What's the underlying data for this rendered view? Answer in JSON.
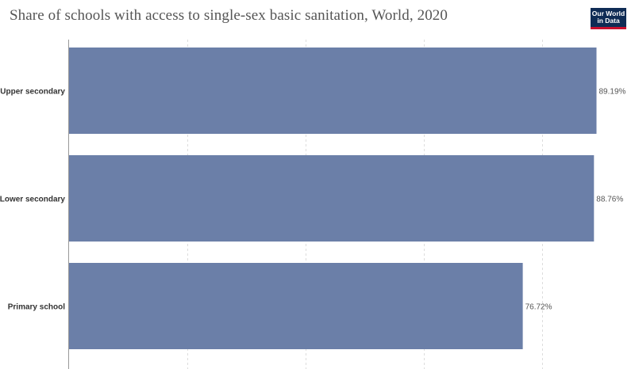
{
  "header": {
    "title": "Share of schools with access to single-sex basic sanitation, World, 2020",
    "logo_line1": "Our World",
    "logo_line2": "in Data"
  },
  "colors": {
    "bar": "#6b7fa8",
    "logo_bg": "#0f2c55",
    "logo_accent": "#c8102e"
  },
  "chart_data": {
    "type": "bar",
    "orientation": "horizontal",
    "title": "Share of schools with access to single-sex basic sanitation, World, 2020",
    "categories": [
      "Upper secondary",
      "Lower secondary",
      "Primary school"
    ],
    "values": [
      89.19,
      88.76,
      76.72
    ],
    "value_labels": [
      "89.19%",
      "88.76%",
      "76.72%"
    ],
    "unit": "%",
    "xlim": [
      0,
      100
    ],
    "gridlines": [
      20,
      40,
      60,
      80
    ],
    "grid": true,
    "legend": "none"
  }
}
